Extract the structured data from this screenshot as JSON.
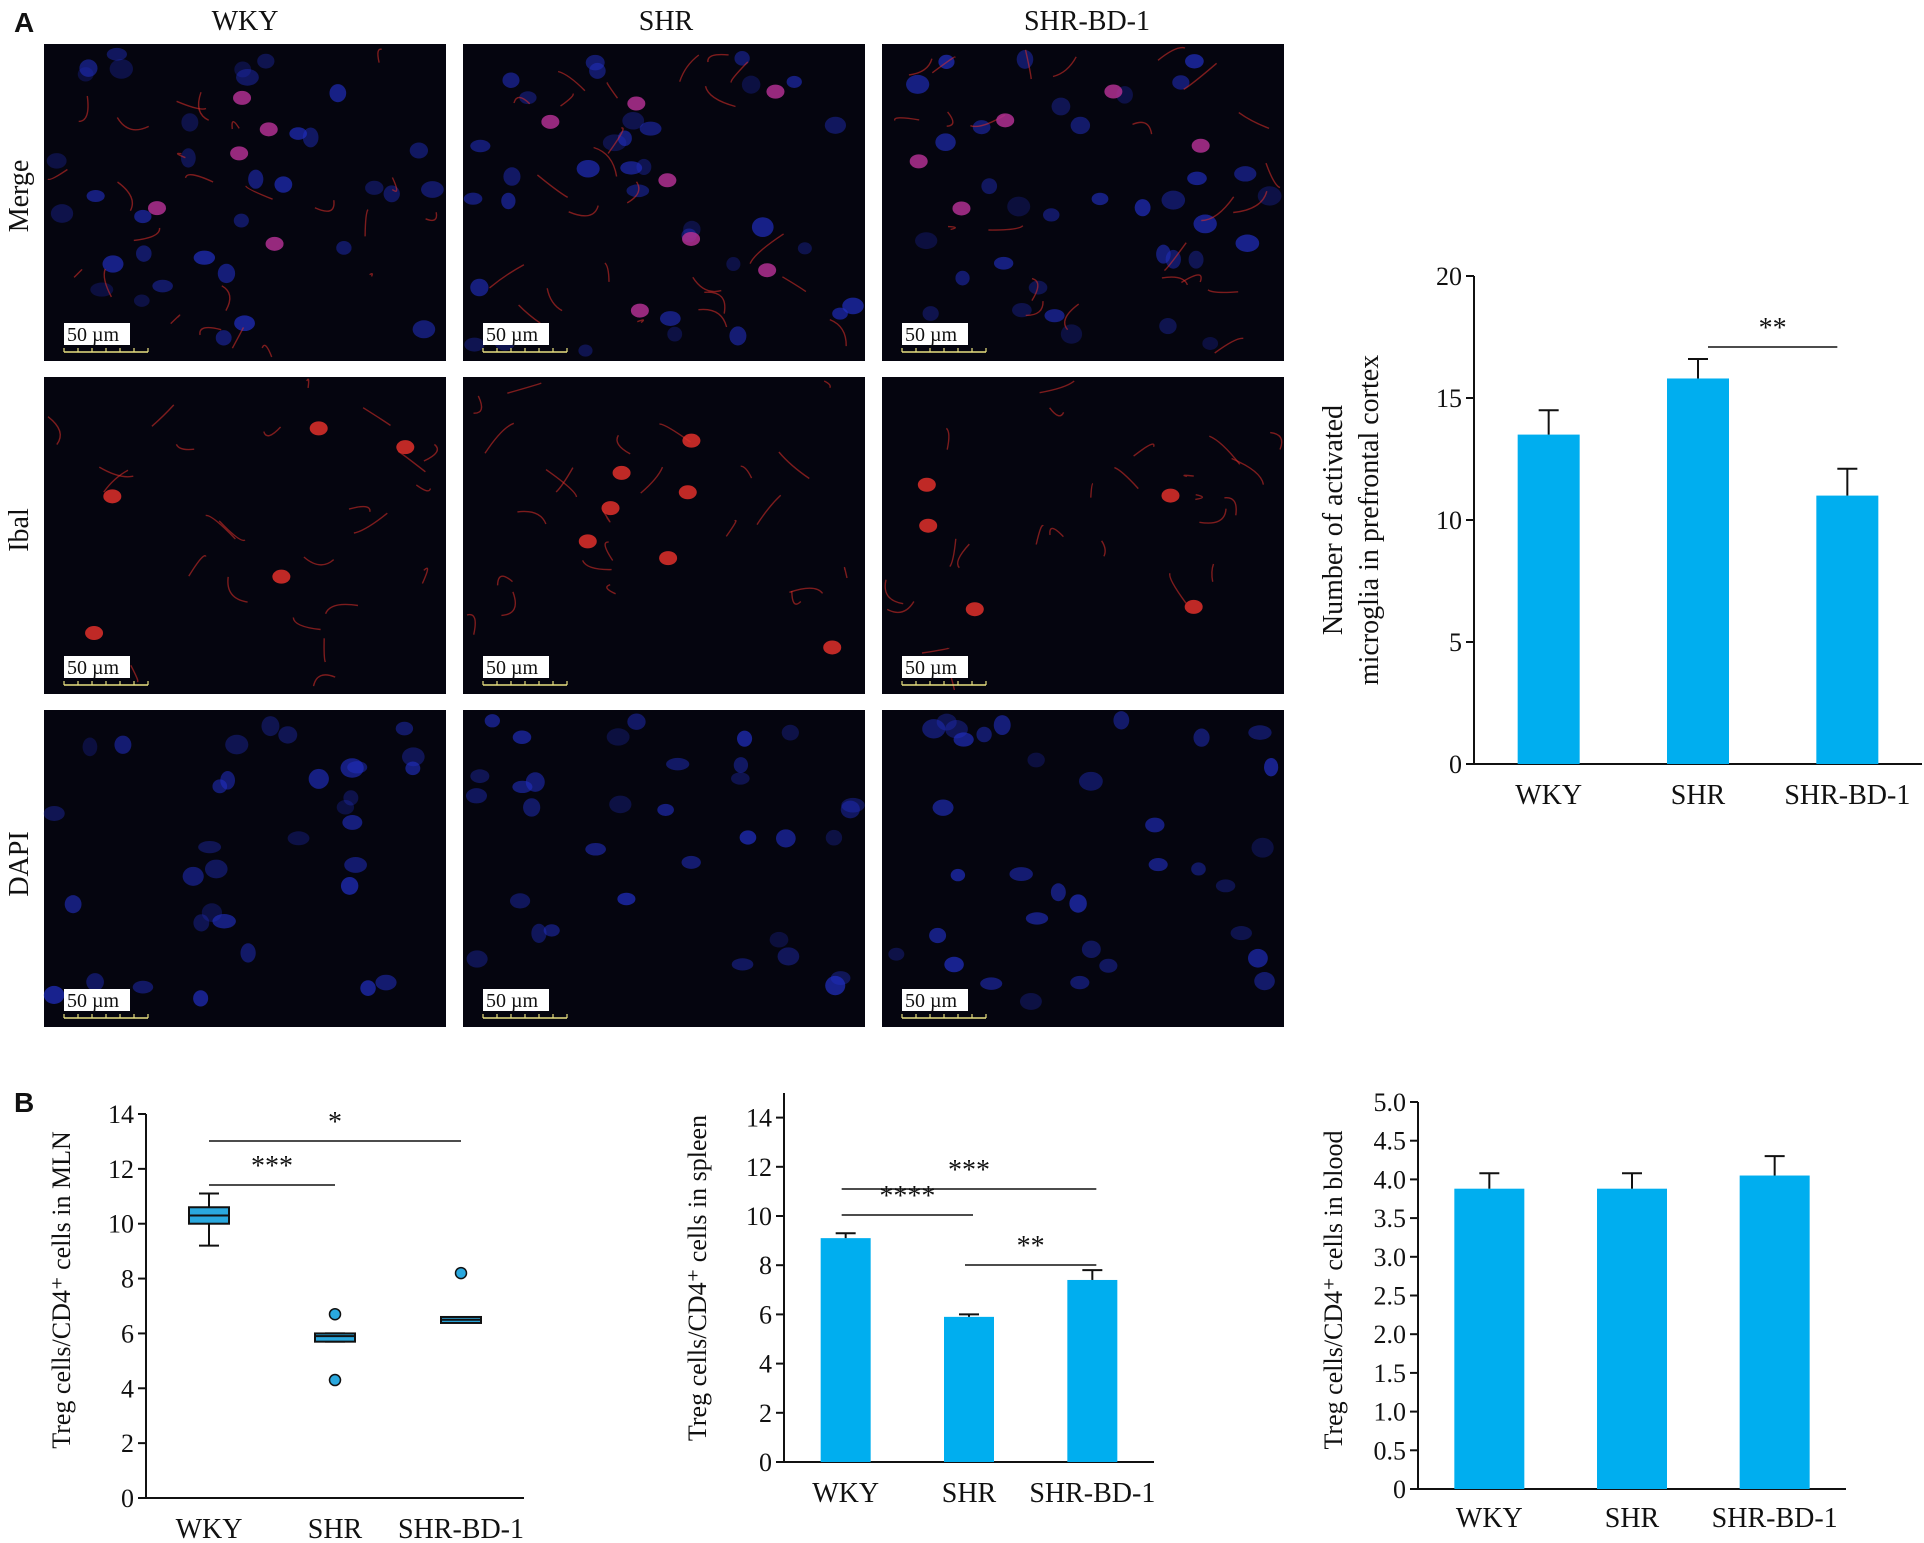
{
  "panel_a": {
    "letter": "A",
    "columns": [
      "WKY",
      "SHR",
      "SHR-BD-1"
    ],
    "rows": [
      "Merge",
      "Ibal",
      "DAPI"
    ],
    "scale_bar_label": "50 µm"
  },
  "panel_b": {
    "letter": "B"
  },
  "colors": {
    "bar": "#00aeef",
    "box": "#2aa8de",
    "axis": "#111111",
    "micro_bg": "#05050f",
    "red": "#e0302a",
    "blue": "#2230c8"
  },
  "chart_data": [
    {
      "id": "microglia",
      "type": "bar",
      "categories": [
        "WKY",
        "SHR",
        "SHR-BD-1"
      ],
      "values": [
        13.5,
        15.8,
        11.0
      ],
      "errors": [
        1.0,
        0.8,
        1.1
      ],
      "ylabel_lines": [
        "Number of activated",
        "microglia in prefrontal cortex"
      ],
      "ylim": [
        0,
        20
      ],
      "yticks": [
        "0",
        "5",
        "10",
        "15",
        "20"
      ],
      "significance": [
        {
          "from": 1,
          "to": 2,
          "label": "**"
        }
      ]
    },
    {
      "id": "mln",
      "type": "box",
      "categories": [
        "WKY",
        "SHR",
        "SHR-BD-1"
      ],
      "boxes": [
        {
          "min": 9.2,
          "q1": 10.0,
          "median": 10.3,
          "q3": 10.6,
          "max": 11.1,
          "outliers": []
        },
        {
          "min": 5.7,
          "q1": 5.7,
          "median": 5.9,
          "q3": 6.0,
          "max": 6.0,
          "outliers": [
            6.7,
            4.3
          ]
        },
        {
          "min": 6.4,
          "q1": 6.45,
          "median": 6.5,
          "q3": 6.6,
          "max": 6.6,
          "outliers": [
            8.2
          ]
        }
      ],
      "ylabel": "Treg cells/CD4⁺ cells in MLN",
      "ylim": [
        0,
        14
      ],
      "yticks": [
        "0",
        "2",
        "4",
        "6",
        "8",
        "10",
        "12",
        "14"
      ],
      "significance": [
        {
          "from": 0,
          "to": 2,
          "label": "*"
        },
        {
          "from": 0,
          "to": 1,
          "label": "***"
        }
      ]
    },
    {
      "id": "spleen",
      "type": "bar",
      "categories": [
        "WKY",
        "SHR",
        "SHR-BD-1"
      ],
      "values": [
        9.1,
        5.9,
        7.4
      ],
      "errors": [
        0.2,
        0.1,
        0.4
      ],
      "ylabel": "Treg cells/CD4⁺ cells in spleen",
      "ylim": [
        0,
        15
      ],
      "yticks": [
        "0",
        "2",
        "4",
        "6",
        "8",
        "10",
        "12",
        "14"
      ],
      "significance": [
        {
          "from": 0,
          "to": 2,
          "label": "***"
        },
        {
          "from": 0,
          "to": 1,
          "label": "****"
        },
        {
          "from": 1,
          "to": 2,
          "label": "**"
        }
      ]
    },
    {
      "id": "blood",
      "type": "bar",
      "categories": [
        "WKY",
        "SHR",
        "SHR-BD-1"
      ],
      "values": [
        3.88,
        3.88,
        4.05
      ],
      "errors": [
        0.2,
        0.2,
        0.25
      ],
      "ylabel": "Treg cells/CD4⁺ cells in blood",
      "ylim": [
        0,
        5
      ],
      "yticks": [
        "0",
        "0.5",
        "1.0",
        "1.5",
        "2.0",
        "2.5",
        "3.0",
        "3.5",
        "4.0",
        "4.5",
        "5.0"
      ],
      "significance": []
    }
  ]
}
